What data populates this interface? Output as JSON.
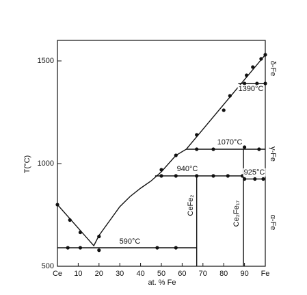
{
  "chart_data": {
    "type": "line",
    "xlabel": "at. % Fe",
    "ylabel": "T(°C)",
    "xlim": [
      0,
      100
    ],
    "ylim": [
      500,
      1600
    ],
    "xticks": [
      {
        "value": 0,
        "label": "Ce"
      },
      10,
      20,
      30,
      40,
      50,
      60,
      70,
      80,
      90,
      {
        "value": 100,
        "label": "Fe"
      }
    ],
    "yticks": [
      500,
      1000,
      1500
    ],
    "color": "#111111",
    "series": [
      {
        "x": [
          0,
          17.5,
          20,
          25,
          30,
          35,
          40,
          45,
          50,
          57,
          62,
          100
        ],
        "values": [
          800,
          600,
          650,
          720,
          790,
          840,
          880,
          915,
          960,
          1040,
          1070,
          1530
        ]
      },
      {
        "x": [
          0,
          67
        ],
        "values": [
          590,
          590
        ]
      },
      {
        "x": [
          47,
          100
        ],
        "values": [
          940,
          940
        ]
      },
      {
        "x": [
          62,
          100
        ],
        "values": [
          1070,
          1070
        ]
      },
      {
        "x": [
          87,
          100
        ],
        "values": [
          1390,
          1390
        ]
      },
      {
        "x": [
          89.5,
          100
        ],
        "values": [
          925,
          925
        ]
      },
      {
        "x": [
          67,
          67
        ],
        "values": [
          500,
          940
        ]
      },
      {
        "x": [
          89.5,
          89.5
        ],
        "values": [
          500,
          1070
        ]
      }
    ],
    "points": {
      "x": [
        0,
        6,
        11,
        20,
        20,
        5,
        11,
        48,
        57,
        50,
        57,
        67,
        80,
        83,
        91,
        94,
        98,
        100,
        50,
        57,
        67,
        75,
        82,
        89,
        67,
        75,
        90,
        97,
        90,
        96,
        100,
        90,
        95,
        99
      ],
      "values": [
        800,
        725,
        665,
        645,
        578,
        590,
        590,
        590,
        590,
        970,
        1040,
        1140,
        1260,
        1330,
        1430,
        1470,
        1510,
        1530,
        940,
        940,
        940,
        940,
        940,
        940,
        1070,
        1070,
        1080,
        1070,
        1390,
        1390,
        1390,
        925,
        925,
        925
      ]
    },
    "annotations": [
      "590°C",
      "940°C",
      "1070°C",
      "1390°C",
      "925°C",
      "CeFe₂",
      "Ce₂Fe₁₇",
      "δ-Fe",
      "γ-Fe",
      "α-Fe"
    ]
  }
}
